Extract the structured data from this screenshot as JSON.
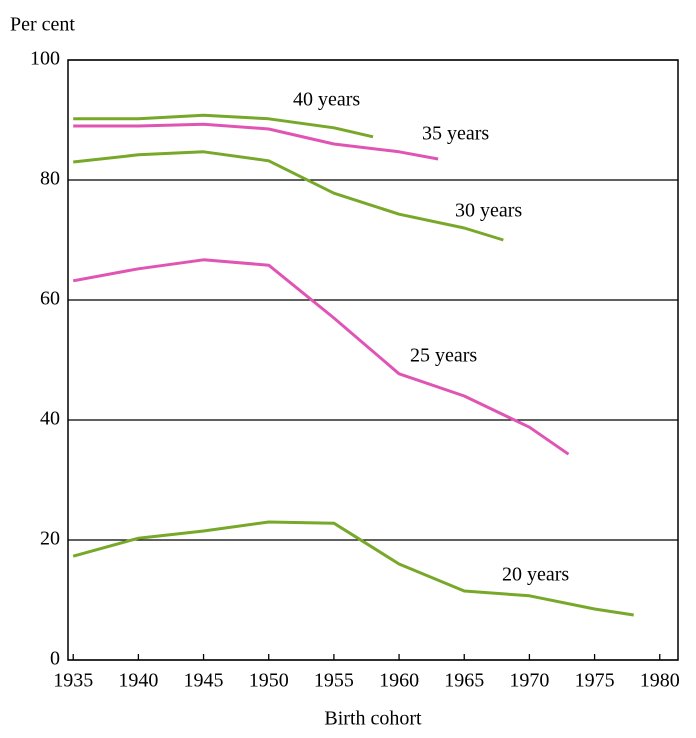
{
  "chart_data": {
    "type": "line",
    "y_axis_label": "Per cent",
    "x_axis_label": "Birth cohort",
    "xlim": [
      1934.6,
      1981.4
    ],
    "xticks": [
      1935,
      1940,
      1945,
      1950,
      1955,
      1960,
      1965,
      1970,
      1975,
      1980
    ],
    "ylim": [
      0,
      100
    ],
    "yticks": [
      0,
      20,
      40,
      60,
      80,
      100
    ],
    "grid": true,
    "series": [
      {
        "name": "40 years",
        "color": "#78a82a",
        "x": [
          1935,
          1940,
          1945,
          1950,
          1955,
          1958
        ],
        "values": [
          90.2,
          90.2,
          90.8,
          90.2,
          88.7,
          87.2
        ]
      },
      {
        "name": "35 years",
        "color": "#e055b4",
        "x": [
          1935,
          1940,
          1945,
          1950,
          1955,
          1960,
          1963
        ],
        "values": [
          89,
          89,
          89.3,
          88.5,
          86,
          84.7,
          83.5
        ]
      },
      {
        "name": "30 years",
        "color": "#78a82a",
        "x": [
          1935,
          1940,
          1945,
          1950,
          1955,
          1960,
          1965,
          1968
        ],
        "values": [
          83,
          84.2,
          84.7,
          83.2,
          77.8,
          74.3,
          72,
          70
        ]
      },
      {
        "name": "25 years",
        "color": "#e055b4",
        "x": [
          1935,
          1940,
          1945,
          1950,
          1955,
          1960,
          1965,
          1970,
          1973
        ],
        "values": [
          63.2,
          65.2,
          66.7,
          65.8,
          57,
          47.7,
          44,
          38.8,
          34.3
        ]
      },
      {
        "name": "20 years",
        "color": "#78a82a",
        "x": [
          1935,
          1940,
          1945,
          1950,
          1955,
          1960,
          1965,
          1970,
          1975,
          1978
        ],
        "values": [
          17.3,
          20.3,
          21.5,
          23,
          22.8,
          16,
          11.5,
          10.7,
          8.5,
          7.5
        ]
      }
    ]
  }
}
